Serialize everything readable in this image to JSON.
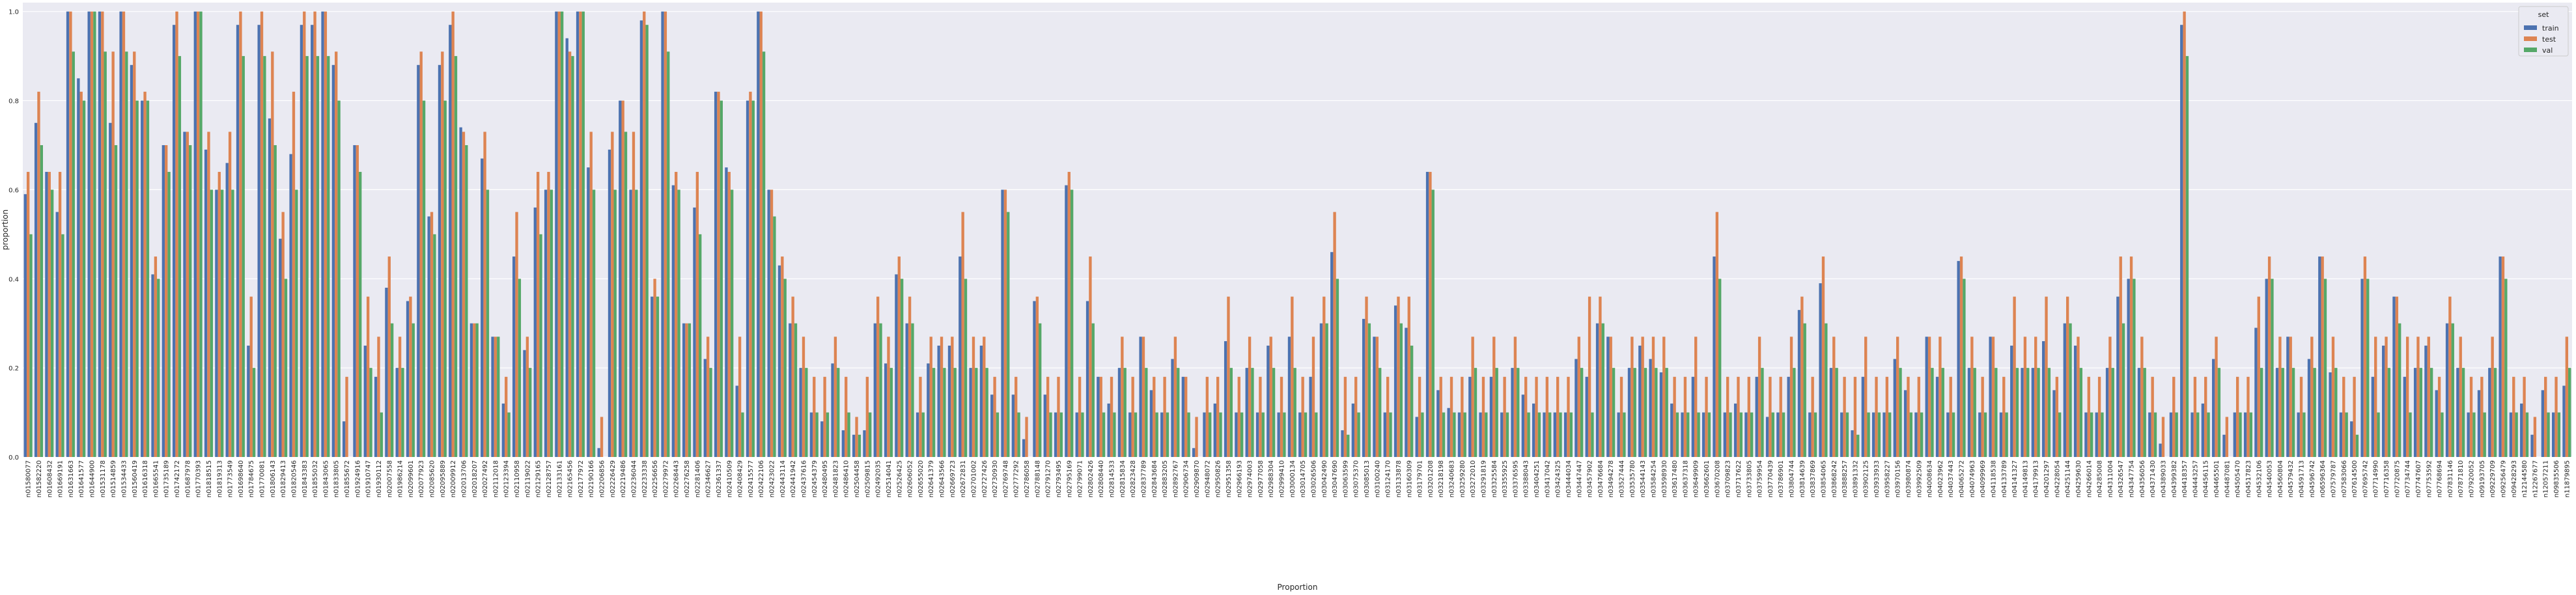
{
  "chart_data": {
    "type": "bar",
    "x_label": "Proportion",
    "y_label": "proportion",
    "legend_title": "set",
    "legend_position": "upper right",
    "grid": true,
    "ylim": [
      0,
      1.02
    ],
    "yticks": [
      {
        "value": 0,
        "label": "0.0"
      },
      {
        "value": 0.2,
        "label": "0.2"
      },
      {
        "value": 0.4,
        "label": "0.4"
      },
      {
        "value": 0.6,
        "label": "0.6"
      },
      {
        "value": 0.8,
        "label": "0.8"
      },
      {
        "value": 1,
        "label": "1.0"
      }
    ],
    "categories": [
      "n01580077",
      "n01582220",
      "n01608432",
      "n01669191",
      "n01631663",
      "n01641577",
      "n01644900",
      "n01531178",
      "n01514859",
      "n01534433",
      "n01560419",
      "n01616318",
      "n01665541",
      "n01735189",
      "n01742172",
      "n01687978",
      "n01770393",
      "n01818515",
      "n01819313",
      "n01773549",
      "n01698640",
      "n01784675",
      "n01770081",
      "n01806143",
      "n01829413",
      "n01820546",
      "n01843383",
      "n01855032",
      "n01843065",
      "n01833805",
      "n01855672",
      "n01924916",
      "n01910747",
      "n01930112",
      "n02007558",
      "n01986214",
      "n02099601",
      "n02077923",
      "n02085620",
      "n02095889",
      "n02009912",
      "n02013706",
      "n02018207",
      "n02027492",
      "n02112018",
      "n02123394",
      "n02110958",
      "n02119022",
      "n02129165",
      "n02128757",
      "n02133161",
      "n02165456",
      "n02177972",
      "n02190166",
      "n02206856",
      "n02226429",
      "n02219486",
      "n02236044",
      "n02233338",
      "n02256656",
      "n02279972",
      "n02268443",
      "n02276258",
      "n02281406",
      "n02346627",
      "n02361337",
      "n02410509",
      "n02408429",
      "n02415577",
      "n02422106",
      "n02423022",
      "n02443114",
      "n02441942",
      "n02437616",
      "n02454379",
      "n02480495",
      "n02481823",
      "n02486410",
      "n02504458",
      "n02509815",
      "n02492035",
      "n02514041",
      "n02526425",
      "n02606052",
      "n02655020",
      "n02641379",
      "n02643566",
      "n02669723",
      "n02672831",
      "n02701002",
      "n02727426",
      "n02730930",
      "n02769748",
      "n02777292",
      "n02786058",
      "n02788148",
      "n02791270",
      "n02793495",
      "n02795169",
      "n02799071",
      "n02802426",
      "n02808440",
      "n02814533",
      "n02815834",
      "n02823428",
      "n02837789",
      "n02843684",
      "n02883205",
      "n02892767",
      "n02906734",
      "n02909870",
      "n02948072",
      "n02950826",
      "n02951358",
      "n02966193",
      "n02974003",
      "n02977058",
      "n02988304",
      "n02999410",
      "n03000134",
      "n03014705",
      "n03026506",
      "n03042490",
      "n03047690",
      "n03063599",
      "n03075370",
      "n03085013",
      "n03100240",
      "n03124170",
      "n03133878",
      "n03160309",
      "n03179701",
      "n03201208",
      "n03218198",
      "n03240683",
      "n03259280",
      "n03272010",
      "n03291819",
      "n03325584",
      "n03355925",
      "n03376595",
      "n03388043",
      "n03404251",
      "n03417042",
      "n03424325",
      "n03444034",
      "n03447447",
      "n03457902",
      "n03476684",
      "n03494278",
      "n03527444",
      "n03535780",
      "n03544143",
      "n03584254",
      "n03598930",
      "n03617480",
      "n03637318",
      "n03649909",
      "n03662601",
      "n03670208",
      "n03709823",
      "n03717622",
      "n03733805",
      "n03759954",
      "n03770439",
      "n03786901",
      "n03804744",
      "n03814639",
      "n03837869",
      "n03854065",
      "n03868242",
      "n03888257",
      "n03891332",
      "n03902125",
      "n03933933",
      "n03958227",
      "n03970156",
      "n03980874",
      "n03992509",
      "n04008634",
      "n04023962",
      "n04037443",
      "n04065272",
      "n04074963",
      "n04099969",
      "n04118538",
      "n04133789",
      "n04141327",
      "n04149813",
      "n04179913",
      "n04201297",
      "n04228054",
      "n04251144",
      "n04259630",
      "n04266014",
      "n04285008",
      "n04311004",
      "n04326547",
      "n04347754",
      "n04356056",
      "n04371430",
      "n04389033",
      "n04399382",
      "n04418357",
      "n04443257",
      "n04456115",
      "n04465501",
      "n04487081",
      "n04505470",
      "n04517823",
      "n04532106",
      "n04540053",
      "n04560804",
      "n04579432",
      "n04591713",
      "n04596742",
      "n06596364",
      "n07579787",
      "n07583066",
      "n07614500",
      "n07695742",
      "n07714990",
      "n07716358",
      "n07720875",
      "n07734744",
      "n07747607",
      "n07753592",
      "n07768694",
      "n07831146",
      "n07871810",
      "n07920052",
      "n09193705",
      "n09229709",
      "n09256479",
      "n09428293",
      "n12144580",
      "n12267677",
      "n12057211",
      "n09835506",
      "n11879895"
    ],
    "series": [
      {
        "name": "train",
        "color": "#4c72b0",
        "values": [
          0.59,
          0.75,
          0.64,
          0.55,
          1,
          0.85,
          1,
          1,
          0.75,
          1,
          0.88,
          0.8,
          0.41,
          0.7,
          0.97,
          0.73,
          1,
          0.69,
          0.6,
          0.66,
          0.97,
          0.25,
          0.97,
          0.76,
          0.49,
          0.68,
          0.97,
          0.97,
          1,
          0.88,
          0.08,
          0.7,
          0.25,
          0.18,
          0.38,
          0.2,
          0.35,
          0.88,
          0.54,
          0.88,
          0.97,
          0.74,
          0.3,
          0.67,
          0.27,
          0.12,
          0.45,
          0.24,
          0.56,
          0.6,
          1,
          0.94,
          1,
          0.65,
          0.02,
          0.69,
          0.8,
          0.6,
          0.98,
          0.36,
          1,
          0.61,
          0.3,
          0.56,
          0.22,
          0.82,
          0.65,
          0.16,
          0.8,
          1,
          0.6,
          0.43,
          0.3,
          0.2,
          0.1,
          0.08,
          0.21,
          0.06,
          0.05,
          0.06,
          0.3,
          0.21,
          0.41,
          0.3,
          0.1,
          0.21,
          0.25,
          0.25,
          0.45,
          0.2,
          0.25,
          0.14,
          0.6,
          0.14,
          0.04,
          0.35,
          0.14,
          0.1,
          0.61,
          0.1,
          0.35,
          0.18,
          0.12,
          0.2,
          0.1,
          0.27,
          0.15,
          0.1,
          0.22,
          0.18,
          0.02,
          0.1,
          0.12,
          0.26,
          0.1,
          0.2,
          0.1,
          0.25,
          0.1,
          0.27,
          0.1,
          0.18,
          0.3,
          0.46,
          0.06,
          0.12,
          0.31,
          0.27,
          0.1,
          0.34,
          0.29,
          0.09,
          0.64,
          0.15,
          0.11,
          0.1,
          0.18,
          0.1,
          0.18,
          0.1,
          0.2,
          0.14,
          0.12,
          0.1,
          0.1,
          0.1,
          0.22,
          0.18,
          0.3,
          0.27,
          0.1,
          0.2,
          0.25,
          0.22,
          0.19,
          0.12,
          0.1,
          0.18,
          0.1,
          0.45,
          0.1,
          0.12,
          0.1,
          0.18,
          0.09,
          0.1,
          0.18,
          0.33,
          0.1,
          0.39,
          0.2,
          0.1,
          0.06,
          0.18,
          0.1,
          0.1,
          0.22,
          0.15,
          0.1,
          0.27,
          0.18,
          0.1,
          0.44,
          0.2,
          0.1,
          0.27,
          0.1,
          0.25,
          0.2,
          0.2,
          0.26,
          0.15,
          0.3,
          0.25,
          0.1,
          0.1,
          0.2,
          0.36,
          0.4,
          0.2,
          0.1,
          0.03,
          0.1,
          0.97,
          0.1,
          0.12,
          0.22,
          0.05,
          0.1,
          0.1,
          0.29,
          0.4,
          0.2,
          0.27,
          0.1,
          0.22,
          0.45,
          0.19,
          0.1,
          0.08,
          0.4,
          0.18,
          0.25,
          0.36,
          0.18,
          0.2,
          0.25,
          0.15,
          0.3,
          0.2,
          0.1,
          0.15,
          0.2,
          0.45,
          0.1,
          0.12,
          0.05,
          0.15,
          0.1,
          0.16
        ]
      },
      {
        "name": "test",
        "color": "#dd8452",
        "values": [
          0.64,
          0.82,
          0.64,
          0.64,
          1,
          0.82,
          1,
          1,
          0.91,
          1,
          0.91,
          0.82,
          0.45,
          0.7,
          1,
          0.73,
          1,
          0.73,
          0.64,
          0.73,
          1,
          0.36,
          1,
          0.91,
          0.55,
          0.82,
          1,
          1,
          1,
          0.91,
          0.18,
          0.7,
          0.36,
          0.27,
          0.45,
          0.27,
          0.36,
          0.91,
          0.55,
          0.91,
          1,
          0.73,
          0.3,
          0.73,
          0.27,
          0.18,
          0.55,
          0.27,
          0.64,
          0.64,
          1,
          0.91,
          1,
          0.73,
          0.09,
          0.73,
          0.8,
          0.73,
          1,
          0.4,
          1,
          0.64,
          0.3,
          0.64,
          0.27,
          0.82,
          0.64,
          0.27,
          0.82,
          1,
          0.6,
          0.45,
          0.36,
          0.27,
          0.18,
          0.18,
          0.27,
          0.18,
          0.09,
          0.18,
          0.36,
          0.27,
          0.45,
          0.36,
          0.18,
          0.27,
          0.27,
          0.27,
          0.55,
          0.27,
          0.27,
          0.18,
          0.6,
          0.18,
          0.09,
          0.36,
          0.18,
          0.18,
          0.64,
          0.18,
          0.45,
          0.18,
          0.18,
          0.27,
          0.18,
          0.27,
          0.18,
          0.18,
          0.27,
          0.18,
          0.09,
          0.18,
          0.18,
          0.36,
          0.18,
          0.27,
          0.18,
          0.27,
          0.18,
          0.36,
          0.18,
          0.27,
          0.36,
          0.55,
          0.18,
          0.18,
          0.36,
          0.27,
          0.18,
          0.36,
          0.36,
          0.18,
          0.64,
          0.18,
          0.18,
          0.18,
          0.27,
          0.18,
          0.27,
          0.18,
          0.27,
          0.18,
          0.18,
          0.18,
          0.18,
          0.18,
          0.27,
          0.36,
          0.36,
          0.27,
          0.18,
          0.27,
          0.27,
          0.27,
          0.27,
          0.18,
          0.18,
          0.27,
          0.18,
          0.55,
          0.18,
          0.18,
          0.18,
          0.27,
          0.18,
          0.18,
          0.27,
          0.36,
          0.18,
          0.45,
          0.27,
          0.18,
          0.18,
          0.27,
          0.18,
          0.18,
          0.27,
          0.18,
          0.18,
          0.27,
          0.27,
          0.18,
          0.45,
          0.27,
          0.18,
          0.27,
          0.18,
          0.36,
          0.27,
          0.27,
          0.36,
          0.18,
          0.36,
          0.27,
          0.18,
          0.18,
          0.27,
          0.45,
          0.45,
          0.27,
          0.18,
          0.09,
          0.18,
          1,
          0.18,
          0.18,
          0.27,
          0.09,
          0.18,
          0.18,
          0.36,
          0.45,
          0.27,
          0.27,
          0.18,
          0.27,
          0.45,
          0.27,
          0.18,
          0.18,
          0.45,
          0.27,
          0.27,
          0.36,
          0.27,
          0.27,
          0.27,
          0.18,
          0.36,
          0.27,
          0.18,
          0.18,
          0.27,
          0.45,
          0.18,
          0.18,
          0.09,
          0.18,
          0.18,
          0.27
        ]
      },
      {
        "name": "val",
        "color": "#55a868",
        "values": [
          0.5,
          0.7,
          0.6,
          0.5,
          0.91,
          0.8,
          1,
          0.91,
          0.7,
          0.91,
          0.8,
          0.8,
          0.4,
          0.64,
          0.9,
          0.7,
          1,
          0.6,
          0.6,
          0.6,
          0.9,
          0.2,
          0.9,
          0.7,
          0.4,
          0.6,
          0.9,
          0.9,
          0.9,
          0.8,
          0,
          0.64,
          0.2,
          0.1,
          0.3,
          0.2,
          0.3,
          0.8,
          0.5,
          0.8,
          0.9,
          0.7,
          0.3,
          0.6,
          0.27,
          0.1,
          0.4,
          0.2,
          0.5,
          0.6,
          1,
          0.9,
          1,
          0.6,
          0,
          0.6,
          0.73,
          0.6,
          0.97,
          0.36,
          0.91,
          0.6,
          0.3,
          0.5,
          0.2,
          0.8,
          0.6,
          0.1,
          0.8,
          0.91,
          0.54,
          0.4,
          0.3,
          0.2,
          0.1,
          0.1,
          0.2,
          0.1,
          0.05,
          0.1,
          0.3,
          0.2,
          0.4,
          0.3,
          0.1,
          0.2,
          0.2,
          0.2,
          0.4,
          0.2,
          0.2,
          0.1,
          0.55,
          0.1,
          0,
          0.3,
          0.1,
          0.1,
          0.6,
          0.1,
          0.3,
          0.1,
          0.1,
          0.2,
          0.1,
          0.2,
          0.1,
          0.1,
          0.2,
          0.1,
          0,
          0.1,
          0.1,
          0.2,
          0.1,
          0.2,
          0.1,
          0.2,
          0.1,
          0.2,
          0.1,
          0.1,
          0.3,
          0.4,
          0.05,
          0.1,
          0.3,
          0.2,
          0.1,
          0.3,
          0.25,
          0.1,
          0.6,
          0.1,
          0.1,
          0.1,
          0.2,
          0.1,
          0.2,
          0.1,
          0.2,
          0.1,
          0.1,
          0.1,
          0.1,
          0.1,
          0.2,
          0.1,
          0.3,
          0.2,
          0.1,
          0.2,
          0.2,
          0.2,
          0.2,
          0.1,
          0.1,
          0.1,
          0.1,
          0.4,
          0.1,
          0.1,
          0.1,
          0.2,
          0.1,
          0.1,
          0.2,
          0.3,
          0.1,
          0.3,
          0.2,
          0.1,
          0.05,
          0.1,
          0.1,
          0.1,
          0.2,
          0.1,
          0.1,
          0.2,
          0.2,
          0.1,
          0.4,
          0.2,
          0.1,
          0.2,
          0.1,
          0.2,
          0.2,
          0.2,
          0.2,
          0.1,
          0.3,
          0.2,
          0.1,
          0.1,
          0.2,
          0.3,
          0.4,
          0.2,
          0.1,
          0,
          0.1,
          0.9,
          0.1,
          0.1,
          0.2,
          0,
          0.1,
          0.1,
          0.2,
          0.4,
          0.2,
          0.2,
          0.1,
          0.2,
          0.4,
          0.2,
          0.1,
          0.05,
          0.4,
          0.1,
          0.2,
          0.3,
          0.1,
          0.2,
          0.2,
          0.1,
          0.3,
          0.2,
          0.1,
          0.1,
          0.2,
          0.4,
          0.1,
          0.1,
          0,
          0.1,
          0.1,
          0.2
        ]
      }
    ]
  }
}
